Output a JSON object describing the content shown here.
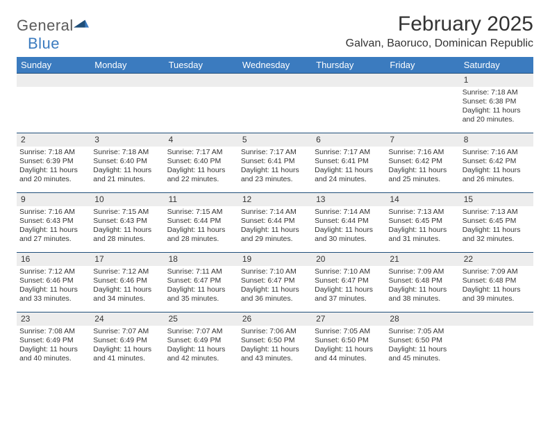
{
  "logo": {
    "word1": "General",
    "word2": "Blue"
  },
  "title": "February 2025",
  "location": "Galvan, Baoruco, Dominican Republic",
  "colors": {
    "header_bg": "#3b7bbf",
    "header_text": "#ffffff",
    "daynum_bg": "#ededed",
    "rule": "#1f4e79",
    "body_text": "#333333",
    "logo_gray": "#5a5a5a",
    "logo_blue": "#3b7bbf"
  },
  "weekdays": [
    "Sunday",
    "Monday",
    "Tuesday",
    "Wednesday",
    "Thursday",
    "Friday",
    "Saturday"
  ],
  "weeks": [
    [
      null,
      null,
      null,
      null,
      null,
      null,
      {
        "n": "1",
        "sr": "7:18 AM",
        "ss": "6:38 PM",
        "dl": "11 hours and 20 minutes."
      }
    ],
    [
      {
        "n": "2",
        "sr": "7:18 AM",
        "ss": "6:39 PM",
        "dl": "11 hours and 20 minutes."
      },
      {
        "n": "3",
        "sr": "7:18 AM",
        "ss": "6:40 PM",
        "dl": "11 hours and 21 minutes."
      },
      {
        "n": "4",
        "sr": "7:17 AM",
        "ss": "6:40 PM",
        "dl": "11 hours and 22 minutes."
      },
      {
        "n": "5",
        "sr": "7:17 AM",
        "ss": "6:41 PM",
        "dl": "11 hours and 23 minutes."
      },
      {
        "n": "6",
        "sr": "7:17 AM",
        "ss": "6:41 PM",
        "dl": "11 hours and 24 minutes."
      },
      {
        "n": "7",
        "sr": "7:16 AM",
        "ss": "6:42 PM",
        "dl": "11 hours and 25 minutes."
      },
      {
        "n": "8",
        "sr": "7:16 AM",
        "ss": "6:42 PM",
        "dl": "11 hours and 26 minutes."
      }
    ],
    [
      {
        "n": "9",
        "sr": "7:16 AM",
        "ss": "6:43 PM",
        "dl": "11 hours and 27 minutes."
      },
      {
        "n": "10",
        "sr": "7:15 AM",
        "ss": "6:43 PM",
        "dl": "11 hours and 28 minutes."
      },
      {
        "n": "11",
        "sr": "7:15 AM",
        "ss": "6:44 PM",
        "dl": "11 hours and 28 minutes."
      },
      {
        "n": "12",
        "sr": "7:14 AM",
        "ss": "6:44 PM",
        "dl": "11 hours and 29 minutes."
      },
      {
        "n": "13",
        "sr": "7:14 AM",
        "ss": "6:44 PM",
        "dl": "11 hours and 30 minutes."
      },
      {
        "n": "14",
        "sr": "7:13 AM",
        "ss": "6:45 PM",
        "dl": "11 hours and 31 minutes."
      },
      {
        "n": "15",
        "sr": "7:13 AM",
        "ss": "6:45 PM",
        "dl": "11 hours and 32 minutes."
      }
    ],
    [
      {
        "n": "16",
        "sr": "7:12 AM",
        "ss": "6:46 PM",
        "dl": "11 hours and 33 minutes."
      },
      {
        "n": "17",
        "sr": "7:12 AM",
        "ss": "6:46 PM",
        "dl": "11 hours and 34 minutes."
      },
      {
        "n": "18",
        "sr": "7:11 AM",
        "ss": "6:47 PM",
        "dl": "11 hours and 35 minutes."
      },
      {
        "n": "19",
        "sr": "7:10 AM",
        "ss": "6:47 PM",
        "dl": "11 hours and 36 minutes."
      },
      {
        "n": "20",
        "sr": "7:10 AM",
        "ss": "6:47 PM",
        "dl": "11 hours and 37 minutes."
      },
      {
        "n": "21",
        "sr": "7:09 AM",
        "ss": "6:48 PM",
        "dl": "11 hours and 38 minutes."
      },
      {
        "n": "22",
        "sr": "7:09 AM",
        "ss": "6:48 PM",
        "dl": "11 hours and 39 minutes."
      }
    ],
    [
      {
        "n": "23",
        "sr": "7:08 AM",
        "ss": "6:49 PM",
        "dl": "11 hours and 40 minutes."
      },
      {
        "n": "24",
        "sr": "7:07 AM",
        "ss": "6:49 PM",
        "dl": "11 hours and 41 minutes."
      },
      {
        "n": "25",
        "sr": "7:07 AM",
        "ss": "6:49 PM",
        "dl": "11 hours and 42 minutes."
      },
      {
        "n": "26",
        "sr": "7:06 AM",
        "ss": "6:50 PM",
        "dl": "11 hours and 43 minutes."
      },
      {
        "n": "27",
        "sr": "7:05 AM",
        "ss": "6:50 PM",
        "dl": "11 hours and 44 minutes."
      },
      {
        "n": "28",
        "sr": "7:05 AM",
        "ss": "6:50 PM",
        "dl": "11 hours and 45 minutes."
      },
      null
    ]
  ],
  "labels": {
    "sunrise": "Sunrise:",
    "sunset": "Sunset:",
    "daylight": "Daylight:"
  }
}
